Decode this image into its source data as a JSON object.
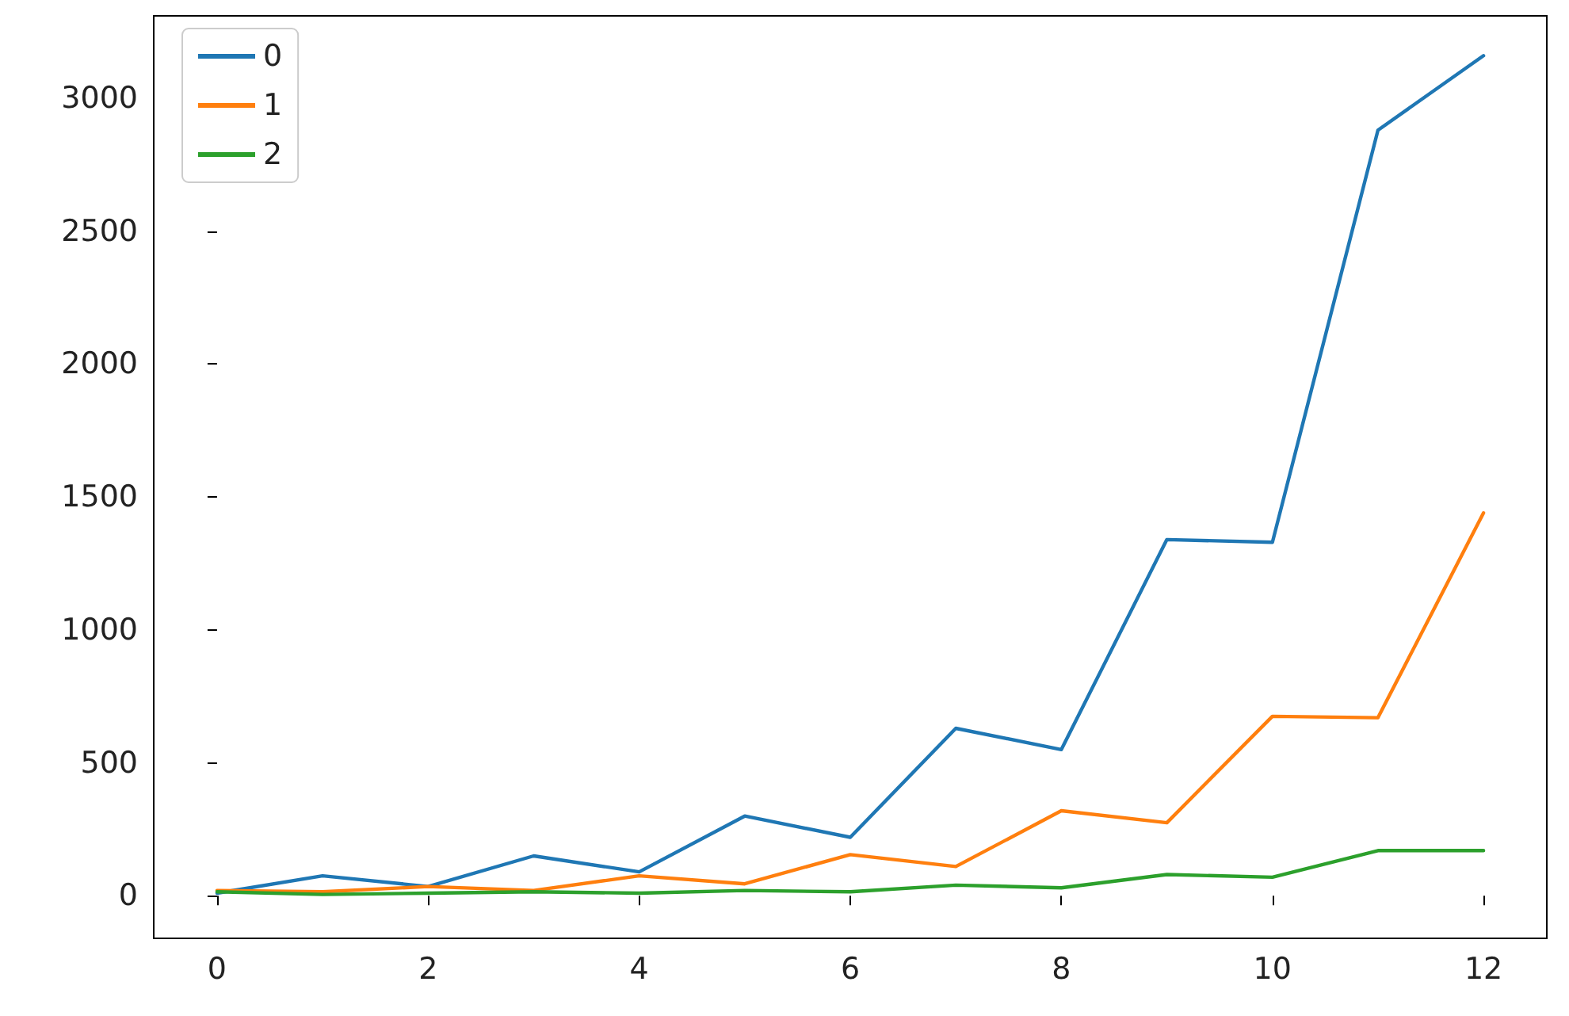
{
  "chart_data": {
    "type": "line",
    "x": [
      0,
      1,
      2,
      3,
      4,
      5,
      6,
      7,
      8,
      9,
      10,
      11,
      12
    ],
    "series": [
      {
        "name": "0",
        "color": "#1f77b4",
        "values": [
          10,
          75,
          35,
          150,
          90,
          300,
          220,
          630,
          550,
          1340,
          1330,
          2880,
          3160
        ]
      },
      {
        "name": "1",
        "color": "#ff7f0e",
        "values": [
          20,
          15,
          35,
          20,
          75,
          45,
          155,
          110,
          320,
          275,
          675,
          670,
          1440
        ]
      },
      {
        "name": "2",
        "color": "#2ca02c",
        "values": [
          15,
          5,
          10,
          15,
          10,
          20,
          15,
          40,
          30,
          80,
          70,
          170,
          170
        ]
      }
    ],
    "xlim": [
      -0.6,
      12.6
    ],
    "xticks": [
      0,
      2,
      4,
      6,
      8,
      10,
      12
    ],
    "ylim": [
      -160,
      3310
    ],
    "yticks": [
      0,
      500,
      1000,
      1500,
      2000,
      2500,
      3000
    ],
    "grid": false,
    "legend": "top left",
    "marker": "none",
    "line_style": "solid"
  }
}
